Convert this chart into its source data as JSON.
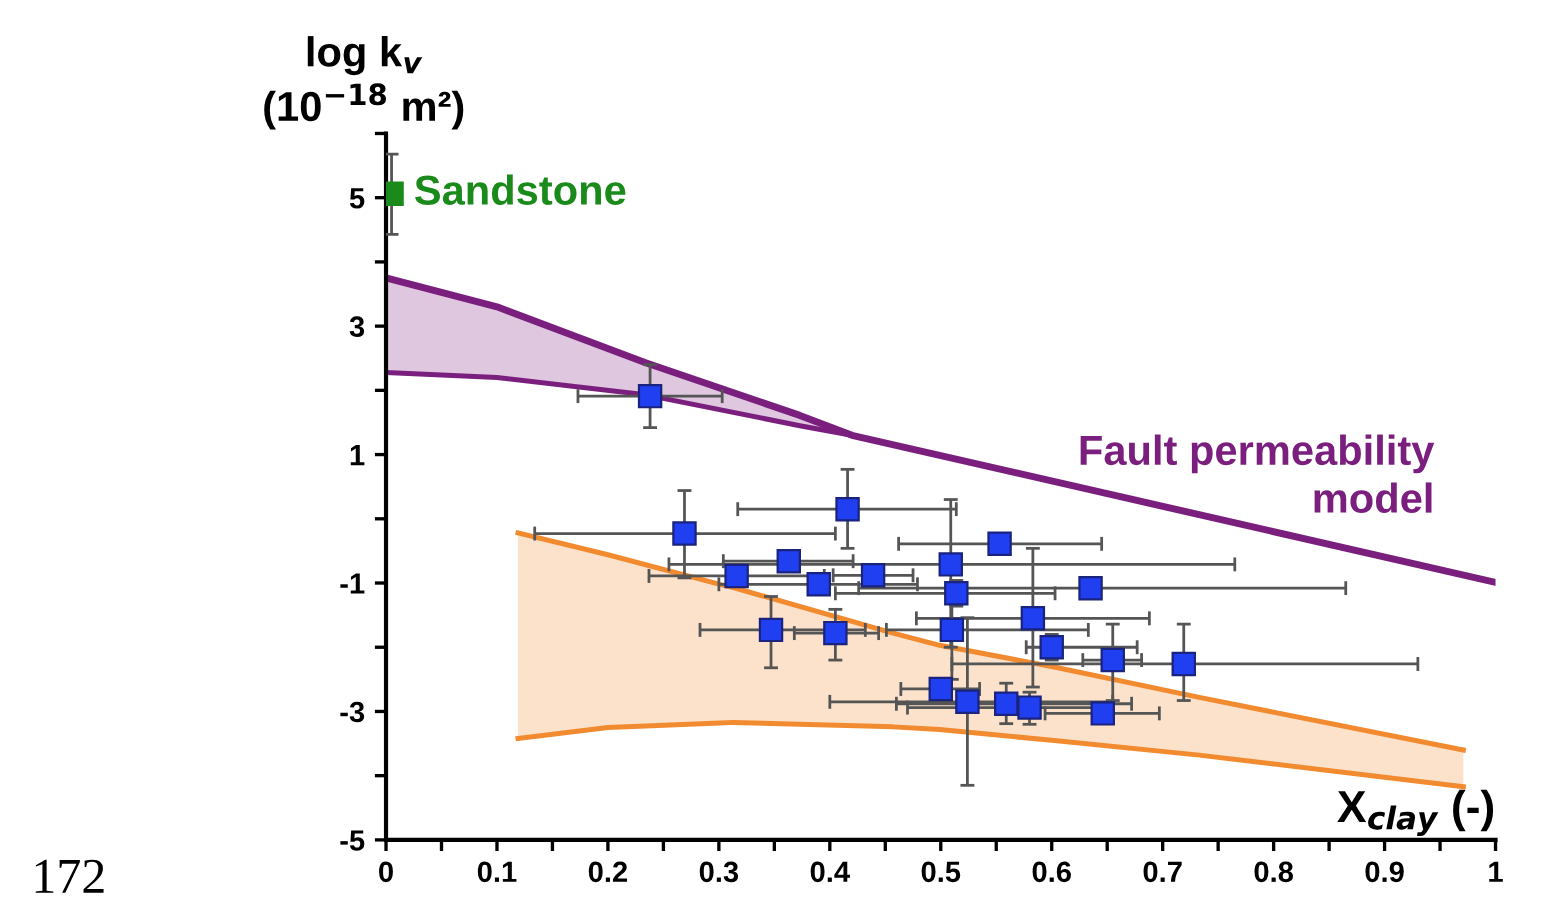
{
  "chart_data": {
    "type": "scatter",
    "xlabel": "X$_{clay}$ (-)",
    "ylabel": "log k$_{v}$\n(10$^{−18}$ m²)",
    "xlim": [
      0,
      1
    ],
    "ylim": [
      -5,
      6
    ],
    "xticks": [
      0,
      {
        "value": 0.05,
        "label": null
      },
      0.1,
      {
        "value": 0.15,
        "label": null
      },
      0.2,
      {
        "value": 0.25,
        "label": null
      },
      0.3,
      {
        "value": 0.35,
        "label": null
      },
      0.4,
      {
        "value": 0.45,
        "label": null
      },
      0.5,
      {
        "value": 0.55,
        "label": null
      },
      0.6,
      {
        "value": 0.65,
        "label": null
      },
      0.7,
      {
        "value": 0.75,
        "label": null
      },
      0.8,
      {
        "value": 0.85,
        "label": null
      },
      0.9,
      {
        "value": 0.95,
        "label": null
      },
      1
    ],
    "yticks": [
      -5,
      {
        "value": -4,
        "label": null
      },
      -3,
      {
        "value": -2,
        "label": null
      },
      -1,
      {
        "value": 0,
        "label": null
      },
      1,
      {
        "value": 2,
        "label": null
      },
      3,
      {
        "value": 4,
        "label": null
      },
      5,
      {
        "value": 6,
        "label": null
      }
    ],
    "grid": false,
    "legend": false,
    "annotations": [
      "172"
    ],
    "series": [
      {
        "type": "line",
        "marker": "none",
        "name": "Fault permeability model",
        "color": "#7b1f7f",
        "x": [
          0,
          0.1,
          0.234,
          0.373,
          0.42,
          1.0
        ],
        "values": [
          3.75,
          3.3,
          2.43,
          1.61,
          1.3,
          -0.99
        ],
        "lower": [
          2.28,
          2.2,
          1.93,
          1.45,
          1.3,
          -0.99
        ],
        "upper": [
          3.75,
          3.3,
          2.43,
          1.61,
          1.3,
          -0.99
        ]
      },
      {
        "type": "line",
        "marker": "none",
        "color": "#7b1f7f",
        "x": [
          0,
          0.1,
          0.234,
          0.373,
          0.42
        ],
        "values": [
          2.28,
          2.2,
          1.93,
          1.45,
          1.3
        ]
      },
      {
        "type": "line",
        "marker": "none",
        "color": "#f28a30",
        "x": [
          0.119,
          0.2,
          0.301,
          0.313,
          0.457,
          0.499,
          0.6,
          0.733,
          0.971
        ],
        "values": [
          -0.22,
          -0.56,
          -1.02,
          -1.07,
          -1.78,
          -1.97,
          -2.3,
          -2.78,
          -3.6
        ],
        "lower": [
          -3.42,
          -3.25,
          -3.18,
          -3.17,
          -3.24,
          -3.28,
          -3.45,
          -3.68,
          -4.17
        ],
        "upper": [
          -0.22,
          -0.56,
          -1.02,
          -1.07,
          -1.78,
          -1.97,
          -2.3,
          -2.78,
          -3.6
        ]
      },
      {
        "type": "line",
        "marker": "none",
        "color": "#f28a30",
        "x": [
          0.119,
          0.2,
          0.301,
          0.313,
          0.457,
          0.499,
          0.6,
          0.733,
          0.971
        ],
        "values": [
          -3.42,
          -3.25,
          -3.18,
          -3.17,
          -3.24,
          -3.28,
          -3.45,
          -3.68,
          -4.17
        ]
      },
      {
        "marker": "square",
        "name": "Sandstone",
        "color": "#1a8a1a",
        "x": [
          0.005
        ],
        "values": [
          5.06
        ],
        "errors": [
          [
            4.43,
            5.68
          ]
        ],
        "xerrors": [
          null
        ]
      },
      {
        "marker": "square",
        "color": "#1f3ff0",
        "x": [
          0.238,
          0.269,
          0.416,
          0.553,
          0.363,
          0.316,
          0.509,
          0.39,
          0.439,
          0.514,
          0.635,
          0.583,
          0.51,
          0.347,
          0.405,
          0.6,
          0.655,
          0.719,
          0.5,
          0.524,
          0.559,
          0.58,
          0.646
        ],
        "values": [
          1.91,
          -0.23,
          0.15,
          -0.39,
          -0.66,
          -0.89,
          -0.71,
          -1.02,
          -0.88,
          -1.16,
          -1.08,
          -1.55,
          -1.73,
          -1.73,
          -1.78,
          -2.0,
          -2.2,
          -2.26,
          -2.65,
          -2.85,
          -2.88,
          -2.94,
          -3.03
        ],
        "errors": [
          [
            1.42,
            2.4
          ],
          [
            -0.92,
            0.44
          ],
          [
            -0.46,
            0.77
          ],
          null,
          null,
          null,
          [
            -2.0,
            0.3
          ],
          null,
          null,
          [
            -1.36,
            -0.96
          ],
          null,
          [
            -2.62,
            -0.46
          ],
          [
            -2.5,
            -1.0
          ],
          [
            -2.32,
            -1.21
          ],
          [
            -2.2,
            -1.41
          ],
          [
            -2.2,
            -1.8
          ],
          [
            -2.83,
            -1.64
          ],
          [
            -2.83,
            -1.64
          ],
          [
            -2.8,
            -2.5
          ],
          [
            -4.15,
            -1.54
          ],
          [
            -3.19,
            -2.56
          ],
          [
            -3.2,
            -2.7
          ],
          [
            -3.15,
            -2.9
          ]
        ],
        "xerrors": [
          [
            0.173,
            0.303
          ],
          [
            0.134,
            0.405
          ],
          [
            0.317,
            0.514
          ],
          [
            0.462,
            0.645
          ],
          [
            0.304,
            0.421
          ],
          [
            0.237,
            0.395
          ],
          [
            0.255,
            0.765
          ],
          [
            0.3,
            0.479
          ],
          [
            0.403,
            0.475
          ],
          [
            0.405,
            0.603
          ],
          [
            0.426,
            0.865
          ],
          [
            0.478,
            0.688
          ],
          [
            0.451,
            0.633
          ],
          [
            0.283,
            0.432
          ],
          [
            0.368,
            0.444
          ],
          [
            0.577,
            0.677
          ],
          [
            0.628,
            0.681
          ],
          [
            0.51,
            0.93
          ],
          [
            0.464,
            0.535
          ],
          [
            0.4,
            0.655
          ],
          [
            0.46,
            0.672
          ],
          [
            0.47,
            0.655
          ],
          [
            0.594,
            0.697
          ]
        ]
      }
    ]
  }
}
